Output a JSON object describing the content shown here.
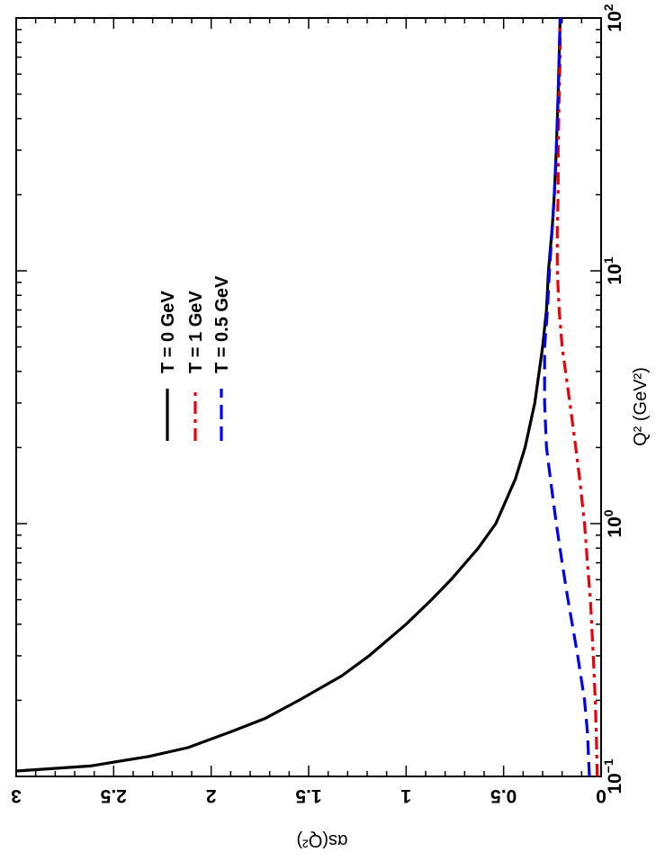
{
  "chart_data": {
    "type": "line",
    "orientation": "rotated-90",
    "xlabel": "Q² (GeV²)",
    "ylabel": "αs(Q²)",
    "xscale": "log",
    "xlim": [
      0.1,
      100
    ],
    "ylim": [
      0,
      3
    ],
    "x_ticks": [
      {
        "value": 0.1,
        "base": "10",
        "exp": "−1"
      },
      {
        "value": 1,
        "base": "10",
        "exp": "0"
      },
      {
        "value": 10,
        "base": "10",
        "exp": "1"
      },
      {
        "value": 100,
        "base": "10",
        "exp": "2"
      }
    ],
    "y_ticks": [
      {
        "value": 0,
        "label": "0"
      },
      {
        "value": 0.5,
        "label": "0.5"
      },
      {
        "value": 1,
        "label": "1"
      },
      {
        "value": 1.5,
        "label": "1.5"
      },
      {
        "value": 2,
        "label": "2"
      },
      {
        "value": 2.5,
        "label": "2.5"
      },
      {
        "value": 3,
        "label": "3"
      }
    ],
    "legend_position": "upper-middle",
    "series": [
      {
        "name": "T = 0 GeV",
        "color": "#000000",
        "dash": "solid",
        "x": [
          0.105,
          0.11,
          0.12,
          0.13,
          0.15,
          0.17,
          0.2,
          0.25,
          0.3,
          0.4,
          0.5,
          0.6,
          0.8,
          1.0,
          1.5,
          2.0,
          3.0,
          5.0,
          7.0,
          10,
          15,
          20,
          30,
          50,
          70,
          100
        ],
        "y": [
          3.0,
          2.62,
          2.32,
          2.12,
          1.9,
          1.72,
          1.55,
          1.33,
          1.19,
          1.0,
          0.87,
          0.77,
          0.63,
          0.54,
          0.44,
          0.39,
          0.34,
          0.3,
          0.28,
          0.27,
          0.25,
          0.24,
          0.23,
          0.22,
          0.215,
          0.21
        ]
      },
      {
        "name": "T = 1 GeV",
        "color": "#e8000b",
        "dash": "dash-dot",
        "x": [
          0.1,
          0.15,
          0.2,
          0.3,
          0.5,
          0.7,
          1.0,
          1.5,
          2.0,
          3.0,
          5.0,
          7.0,
          10,
          15,
          20,
          30,
          50,
          70,
          100
        ],
        "y": [
          0.02,
          0.025,
          0.03,
          0.04,
          0.055,
          0.07,
          0.085,
          0.11,
          0.13,
          0.16,
          0.2,
          0.215,
          0.225,
          0.225,
          0.22,
          0.22,
          0.215,
          0.21,
          0.21
        ]
      },
      {
        "name": "T = 0.5 GeV",
        "color": "#0000ee",
        "dash": "dashed",
        "x": [
          0.1,
          0.15,
          0.2,
          0.3,
          0.5,
          0.7,
          1.0,
          1.5,
          2.0,
          3.0,
          5.0,
          7.0,
          10,
          15,
          20,
          30,
          50,
          70,
          100
        ],
        "y": [
          0.06,
          0.07,
          0.085,
          0.12,
          0.17,
          0.2,
          0.23,
          0.26,
          0.28,
          0.29,
          0.29,
          0.275,
          0.265,
          0.25,
          0.24,
          0.23,
          0.22,
          0.215,
          0.21
        ]
      }
    ]
  }
}
